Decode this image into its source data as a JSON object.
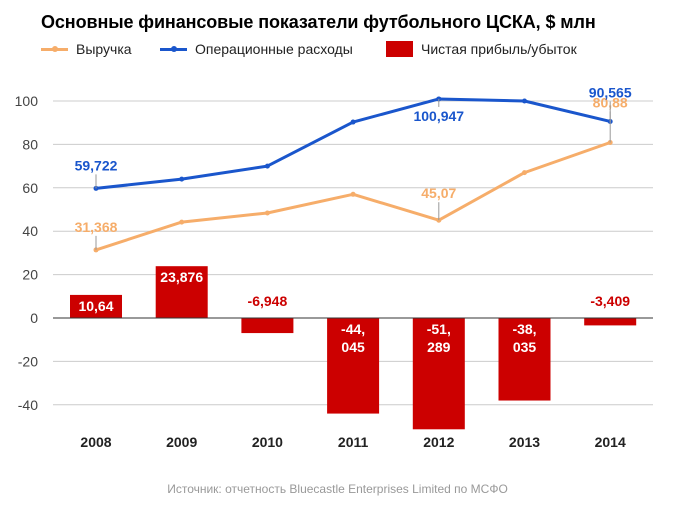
{
  "chart_data": {
    "type": "bar",
    "title": "Основные финансовые показатели футбольного ЦСКА, $ млн",
    "xlabel": "",
    "ylabel": "",
    "ylim": [
      -50,
      110
    ],
    "yticks": [
      100,
      80,
      60,
      40,
      20,
      0,
      -20,
      -40
    ],
    "ytick_labels": [
      "100",
      "80",
      "60",
      "40",
      "20",
      "0",
      "-20",
      "-40"
    ],
    "grid": true,
    "legend_position": "top-left",
    "categories": [
      "2008",
      "2009",
      "2010",
      "2011",
      "2012",
      "2013",
      "2014"
    ],
    "series": [
      {
        "name": "Выручка",
        "kind": "line",
        "color": "#f6ad6a",
        "values": [
          31.368,
          44.2,
          48.4,
          57.0,
          45.07,
          67.0,
          80.88
        ],
        "labels": [
          "31,368",
          "",
          "",
          "",
          "45,07",
          "",
          "80,88"
        ]
      },
      {
        "name": "Операционные расходы",
        "kind": "line",
        "color": "#1a56cc",
        "values": [
          59.722,
          64.0,
          70.0,
          90.3,
          100.947,
          100.0,
          90.565
        ],
        "labels": [
          "59,722",
          "",
          "",
          "",
          "100,947",
          "",
          "90,565"
        ]
      },
      {
        "name": "Чистая прибыль/убыток",
        "kind": "bar",
        "color": "#cc0000",
        "values": [
          10.64,
          23.876,
          -6.948,
          -44.045,
          -51.289,
          -38.035,
          -3.409
        ],
        "labels": [
          "10,64",
          "23,876",
          "-6,948",
          "-44,\n045",
          "-51,\n289",
          "-38,\n035",
          "-3,409"
        ]
      }
    ],
    "source": "Источник: отчетность Bluecastle Enterprises Limited по МСФО"
  },
  "colors": {
    "revenue": "#f6ad6a",
    "expenses": "#1a56cc",
    "profit": "#cc0000",
    "grid": "#cccccc",
    "zero_line": "#333333"
  }
}
